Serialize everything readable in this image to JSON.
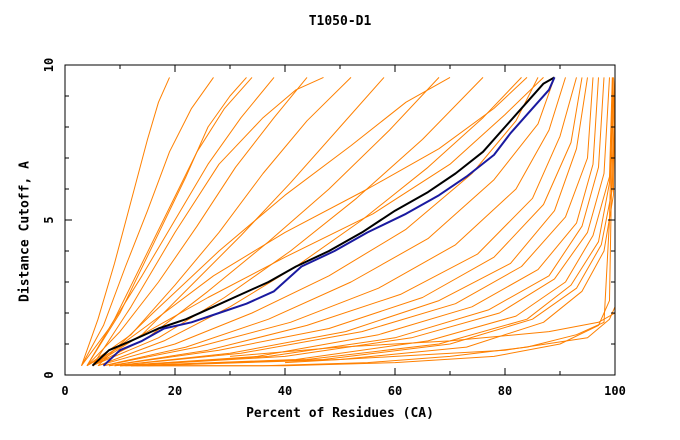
{
  "chart_data": {
    "type": "line",
    "title": "T1050-D1",
    "xlabel": "Percent of Residues (CA)",
    "ylabel": "Distance Cutoff, A",
    "xlim": [
      0,
      100
    ],
    "ylim": [
      0,
      10
    ],
    "x_ticks": [
      "0",
      "20",
      "40",
      "60",
      "80",
      "100"
    ],
    "y_ticks": [
      "0",
      "5",
      "10"
    ],
    "grid": false,
    "colors": {
      "models": "#ff8000",
      "highlight_a": "#000000",
      "highlight_b": "#1a1aa0"
    },
    "series": [
      {
        "color": "#000000",
        "x": [
          5,
          8,
          12,
          17,
          22,
          27,
          32,
          37,
          42,
          48,
          54,
          60,
          66,
          71,
          76,
          80,
          84,
          87,
          89
        ],
        "y": [
          0.3,
          0.8,
          1.1,
          1.5,
          1.8,
          2.2,
          2.6,
          3.0,
          3.5,
          4.0,
          4.6,
          5.3,
          5.9,
          6.5,
          7.2,
          8.0,
          8.8,
          9.4,
          9.6
        ]
      },
      {
        "color": "#1a1aa0",
        "x": [
          7,
          10,
          14,
          18,
          23,
          28,
          33,
          38,
          43,
          49,
          55,
          62,
          68,
          73,
          78,
          81,
          84,
          86,
          88,
          89
        ],
        "y": [
          0.3,
          0.8,
          1.1,
          1.5,
          1.7,
          2.0,
          2.3,
          2.7,
          3.5,
          4.0,
          4.6,
          5.2,
          5.8,
          6.4,
          7.1,
          7.8,
          8.4,
          8.8,
          9.2,
          9.6
        ]
      },
      {
        "color": "#ff8000",
        "x": [
          3,
          6,
          9,
          12,
          15,
          17,
          19
        ],
        "y": [
          0.3,
          1.8,
          3.6,
          5.6,
          7.6,
          8.8,
          9.6
        ]
      },
      {
        "color": "#ff8000",
        "x": [
          3,
          7,
          11,
          15,
          19,
          23,
          27
        ],
        "y": [
          0.3,
          1.6,
          3.5,
          5.3,
          7.2,
          8.6,
          9.6
        ]
      },
      {
        "color": "#ff8000",
        "x": [
          4,
          9,
          14,
          19,
          24,
          29,
          34
        ],
        "y": [
          0.3,
          1.8,
          3.6,
          5.4,
          7.2,
          8.6,
          9.6
        ]
      },
      {
        "color": "#ff8000",
        "x": [
          3,
          8,
          14,
          20,
          26,
          32,
          38
        ],
        "y": [
          0.3,
          1.5,
          3.2,
          5.0,
          6.8,
          8.3,
          9.6
        ]
      },
      {
        "color": "#ff8000",
        "x": [
          4,
          10,
          17,
          24,
          31,
          38,
          44
        ],
        "y": [
          0.3,
          1.4,
          3.0,
          4.8,
          6.7,
          8.3,
          9.6
        ]
      },
      {
        "color": "#ff8000",
        "x": [
          4,
          12,
          20,
          28,
          36,
          44,
          52
        ],
        "y": [
          0.3,
          1.3,
          2.9,
          4.6,
          6.5,
          8.2,
          9.6
        ]
      },
      {
        "color": "#ff8000",
        "x": [
          5,
          14,
          23,
          32,
          41,
          50,
          58
        ],
        "y": [
          0.3,
          1.3,
          2.9,
          4.5,
          6.2,
          8.0,
          9.6
        ]
      },
      {
        "color": "#ff8000",
        "x": [
          5,
          15,
          26,
          37,
          48,
          59,
          68
        ],
        "y": [
          0.3,
          1.2,
          2.7,
          4.3,
          6.0,
          7.9,
          9.6
        ]
      },
      {
        "color": "#ff8000",
        "x": [
          5,
          17,
          29,
          41,
          53,
          65,
          76
        ],
        "y": [
          0.3,
          1.2,
          2.5,
          4.0,
          5.7,
          7.6,
          9.6
        ]
      },
      {
        "color": "#ff8000",
        "x": [
          6,
          18,
          30,
          42,
          54,
          66,
          76,
          83
        ],
        "y": [
          0.3,
          1.1,
          2.2,
          3.5,
          5.0,
          6.7,
          8.3,
          9.6
        ]
      },
      {
        "color": "#ff8000",
        "x": [
          6,
          20,
          34,
          48,
          62,
          74,
          82,
          86
        ],
        "y": [
          0.3,
          1.0,
          2.0,
          3.2,
          4.7,
          6.5,
          8.2,
          9.6
        ]
      },
      {
        "color": "#ff8000",
        "x": [
          7,
          22,
          37,
          52,
          66,
          78,
          86,
          89
        ],
        "y": [
          0.3,
          0.9,
          1.8,
          3.0,
          4.4,
          6.3,
          8.1,
          9.6
        ]
      },
      {
        "color": "#ff8000",
        "x": [
          7,
          24,
          41,
          57,
          71,
          82,
          88,
          91
        ],
        "y": [
          0.3,
          0.9,
          1.7,
          2.8,
          4.2,
          6.0,
          7.9,
          9.6
        ]
      },
      {
        "color": "#ff8000",
        "x": [
          8,
          26,
          44,
          61,
          75,
          85,
          90,
          93
        ],
        "y": [
          0.3,
          0.8,
          1.6,
          2.6,
          3.9,
          5.7,
          7.7,
          9.6
        ]
      },
      {
        "color": "#ff8000",
        "x": [
          8,
          28,
          48,
          65,
          78,
          87,
          92,
          94
        ],
        "y": [
          0.3,
          0.8,
          1.5,
          2.5,
          3.8,
          5.5,
          7.5,
          9.6
        ]
      },
      {
        "color": "#ff8000",
        "x": [
          9,
          30,
          51,
          68,
          81,
          89,
          93,
          95
        ],
        "y": [
          0.3,
          0.7,
          1.4,
          2.4,
          3.6,
          5.3,
          7.3,
          9.6
        ]
      },
      {
        "color": "#ff8000",
        "x": [
          9,
          32,
          54,
          71,
          83,
          91,
          95,
          96
        ],
        "y": [
          0.3,
          0.7,
          1.4,
          2.3,
          3.5,
          5.1,
          7.0,
          9.6
        ]
      },
      {
        "color": "#ff8000",
        "x": [
          10,
          35,
          57,
          74,
          86,
          93,
          96,
          97
        ],
        "y": [
          0.3,
          0.6,
          1.3,
          2.2,
          3.4,
          4.9,
          6.8,
          9.6
        ]
      },
      {
        "color": "#ff8000",
        "x": [
          10,
          37,
          60,
          77,
          88,
          94,
          97,
          98
        ],
        "y": [
          0.3,
          0.6,
          1.2,
          2.1,
          3.2,
          4.8,
          6.7,
          9.6
        ]
      },
      {
        "color": "#ff8000",
        "x": [
          11,
          40,
          63,
          79,
          89,
          95,
          98,
          99
        ],
        "y": [
          0.3,
          0.6,
          1.2,
          2.0,
          3.1,
          4.6,
          6.5,
          9.6
        ]
      },
      {
        "color": "#ff8000",
        "x": [
          12,
          42,
          66,
          82,
          91,
          96,
          99,
          99.5
        ],
        "y": [
          0.3,
          0.5,
          1.1,
          1.9,
          3.0,
          4.5,
          6.4,
          9.6
        ]
      },
      {
        "color": "#ff8000",
        "x": [
          13,
          44,
          68,
          84,
          92,
          97,
          99,
          100
        ],
        "y": [
          0.3,
          0.5,
          1.0,
          1.8,
          2.9,
          4.3,
          6.2,
          9.6
        ]
      },
      {
        "color": "#ff8000",
        "x": [
          14,
          47,
          70,
          85,
          93,
          97.5,
          99.5,
          100
        ],
        "y": [
          0.3,
          0.5,
          1.0,
          1.8,
          2.8,
          4.2,
          6.0,
          9.6
        ]
      },
      {
        "color": "#ff8000",
        "x": [
          15,
          50,
          73,
          87,
          94,
          98,
          99.7,
          100
        ],
        "y": [
          0.3,
          0.5,
          0.9,
          1.7,
          2.7,
          4.0,
          5.8,
          9.6
        ]
      },
      {
        "color": "#ff8000",
        "x": [
          10,
          36,
          55,
          70,
          84,
          93,
          98,
          99,
          99.6
        ],
        "y": [
          0.3,
          0.3,
          0.4,
          0.6,
          0.9,
          1.3,
          1.7,
          5.0,
          9.6
        ]
      },
      {
        "color": "#ff8000",
        "x": [
          12,
          40,
          60,
          78,
          90,
          97,
          99,
          99.7
        ],
        "y": [
          0.3,
          0.3,
          0.4,
          0.6,
          1.0,
          1.6,
          2.4,
          9.6
        ]
      },
      {
        "color": "#ff8000",
        "x": [
          40,
          60,
          80,
          95,
          99,
          100
        ],
        "y": [
          0.4,
          0.6,
          0.8,
          1.2,
          1.8,
          2.2
        ]
      },
      {
        "color": "#ff8000",
        "x": [
          30,
          50,
          70,
          88,
          97,
          100
        ],
        "y": [
          0.6,
          0.9,
          1.1,
          1.4,
          1.7,
          2.0
        ]
      },
      {
        "color": "#ff8000",
        "x": [
          4,
          10,
          16,
          22,
          26,
          30,
          33
        ],
        "y": [
          0.3,
          2.0,
          4.2,
          6.4,
          8.0,
          9.0,
          9.6
        ]
      },
      {
        "color": "#ff8000",
        "x": [
          5,
          12,
          20,
          28,
          36,
          42,
          47
        ],
        "y": [
          0.3,
          2.2,
          4.6,
          6.8,
          8.3,
          9.2,
          9.6
        ]
      },
      {
        "color": "#ff8000",
        "x": [
          6,
          16,
          28,
          40,
          52,
          62,
          70
        ],
        "y": [
          0.3,
          2.0,
          4.0,
          5.8,
          7.4,
          8.8,
          9.6
        ]
      },
      {
        "color": "#ff8000",
        "x": [
          5,
          15,
          27,
          40,
          55,
          68,
          78,
          84
        ],
        "y": [
          0.3,
          1.6,
          3.2,
          4.6,
          6.0,
          7.3,
          8.6,
          9.6
        ]
      },
      {
        "color": "#ff8000",
        "x": [
          4,
          14,
          26,
          40,
          56,
          70,
          80,
          87
        ],
        "y": [
          0.3,
          1.3,
          2.5,
          3.8,
          5.2,
          6.8,
          8.4,
          9.6
        ]
      }
    ]
  }
}
